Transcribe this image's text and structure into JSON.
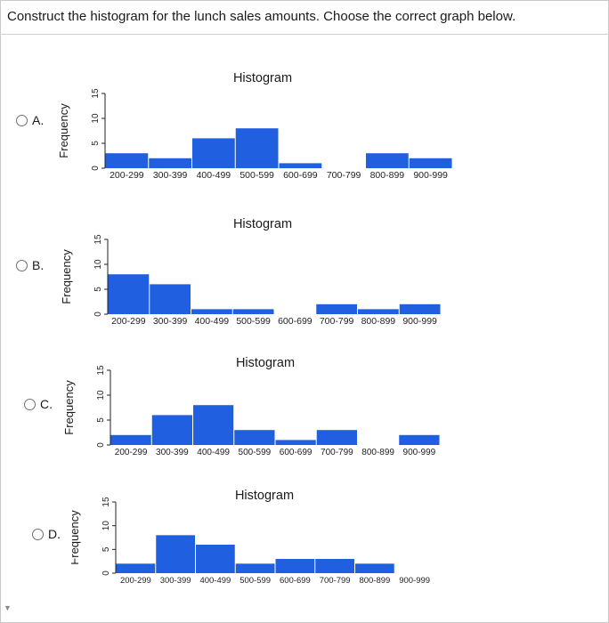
{
  "question": "Construct the histogram for the lunch sales amounts. Choose the correct graph below.",
  "colors": {
    "bar": "#1f5fe0",
    "axis": "#222222",
    "text": "#1a1a1a"
  },
  "options": [
    {
      "letter": "A."
    },
    {
      "letter": "B."
    },
    {
      "letter": "C."
    },
    {
      "letter": "D."
    }
  ],
  "chart_data": [
    {
      "type": "bar",
      "title": "Histogram",
      "ylabel": "Frequency",
      "xlabel": "",
      "categories": [
        "200-299",
        "300-399",
        "400-499",
        "500-599",
        "600-699",
        "700-799",
        "800-899",
        "900-999"
      ],
      "values": [
        3,
        2,
        6,
        8,
        1,
        0,
        3,
        2
      ],
      "ylim": [
        0,
        15
      ],
      "yticks": [
        "0",
        "5",
        "10",
        "15"
      ]
    },
    {
      "type": "bar",
      "title": "Histogram",
      "ylabel": "Frequency",
      "xlabel": "",
      "categories": [
        "200-299",
        "300-399",
        "400-499",
        "500-599",
        "600-699",
        "700-799",
        "800-899",
        "900-999"
      ],
      "values": [
        8,
        6,
        1,
        1,
        0,
        2,
        1,
        2
      ],
      "ylim": [
        0,
        15
      ],
      "yticks": [
        "0",
        "5",
        "10",
        "15"
      ]
    },
    {
      "type": "bar",
      "title": "Histogram",
      "ylabel": "Frequency",
      "xlabel": "",
      "categories": [
        "200-299",
        "300-399",
        "400-499",
        "500-599",
        "600-699",
        "700-799",
        "800-899",
        "900-999"
      ],
      "values": [
        2,
        6,
        8,
        3,
        1,
        3,
        0,
        2
      ],
      "ylim": [
        0,
        15
      ],
      "yticks": [
        "0",
        "5",
        "10",
        "15"
      ]
    },
    {
      "type": "bar",
      "title": "Histogram",
      "ylabel": "Frequency",
      "xlabel": "",
      "categories": [
        "200-299",
        "300-399",
        "400-499",
        "500-599",
        "600-699",
        "700-799",
        "800-899",
        "900-999"
      ],
      "values": [
        2,
        8,
        6,
        2,
        3,
        3,
        2,
        0
      ],
      "ylim": [
        0,
        15
      ],
      "yticks": [
        "0",
        "5",
        "10",
        "15"
      ]
    }
  ]
}
